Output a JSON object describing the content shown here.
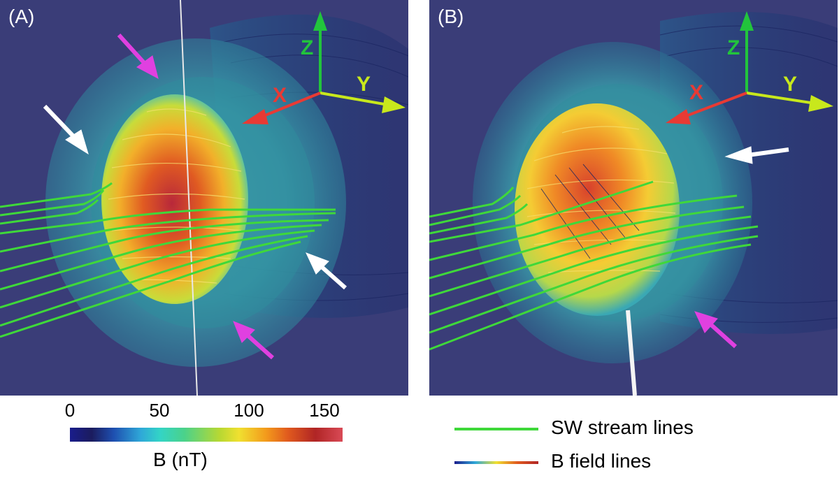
{
  "panels": [
    {
      "label": "(A)",
      "axes": {
        "x": "X",
        "y": "Y",
        "z": "Z"
      }
    },
    {
      "label": "(B)",
      "axes": {
        "x": "X",
        "y": "Y",
        "z": "Z"
      }
    }
  ],
  "colorbar": {
    "ticks": [
      "0",
      "50",
      "100",
      "150"
    ],
    "title": "B (nT)"
  },
  "legend": {
    "sw_stream_lines": "SW stream lines",
    "b_field_lines": "B field lines"
  },
  "colors": {
    "background": "#3a3d78",
    "stream_line": "#3fd83a",
    "axis_x": "#e83a34",
    "axis_y": "#c8e81c",
    "axis_z": "#22c43c",
    "arrow_magenta": "#e040e0",
    "arrow_white": "#ffffff"
  }
}
